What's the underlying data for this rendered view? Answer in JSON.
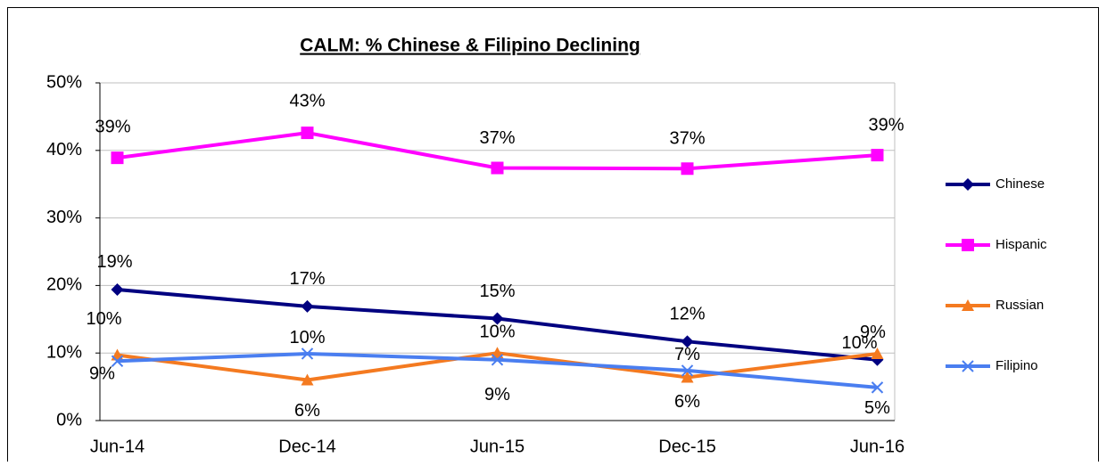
{
  "chart_data": {
    "type": "line",
    "title": "CALM: % Chinese & Filipino Declining",
    "categories": [
      "Jun-14",
      "Dec-14",
      "Jun-15",
      "Dec-15",
      "Jun-16"
    ],
    "ylim": [
      0,
      50
    ],
    "yticks": [
      {
        "value": 0,
        "label": "0%"
      },
      {
        "value": 10,
        "label": "10%"
      },
      {
        "value": 20,
        "label": "20%"
      },
      {
        "value": 30,
        "label": "30%"
      },
      {
        "value": 40,
        "label": "40%"
      },
      {
        "value": 50,
        "label": "50%"
      }
    ],
    "grid": true,
    "legend": "right",
    "series": [
      {
        "name": "Chinese",
        "color": "#000080",
        "marker": "diamond",
        "values": [
          19.4,
          16.9,
          15.1,
          11.7,
          9.0
        ],
        "value_labels": [
          "19%",
          "17%",
          "15%",
          "12%",
          "9%"
        ]
      },
      {
        "name": "Hispanic",
        "color": "#ff00ff",
        "marker": "square",
        "values": [
          38.9,
          42.6,
          37.4,
          37.3,
          39.3
        ],
        "value_labels": [
          "39%",
          "43%",
          "37%",
          "37%",
          "39%"
        ]
      },
      {
        "name": "Russian",
        "color": "#f47a20",
        "marker": "triangle",
        "values": [
          9.7,
          6.0,
          10.0,
          6.4,
          9.9
        ],
        "value_labels": [
          "10%",
          "6%",
          "10%",
          "6%",
          "10%"
        ]
      },
      {
        "name": "Filipino",
        "color": "#4a7ef0",
        "marker": "x",
        "values": [
          8.8,
          9.9,
          9.0,
          7.4,
          4.9
        ],
        "value_labels": [
          "9%",
          "10%",
          "9%",
          "7%",
          "5%"
        ]
      }
    ]
  }
}
